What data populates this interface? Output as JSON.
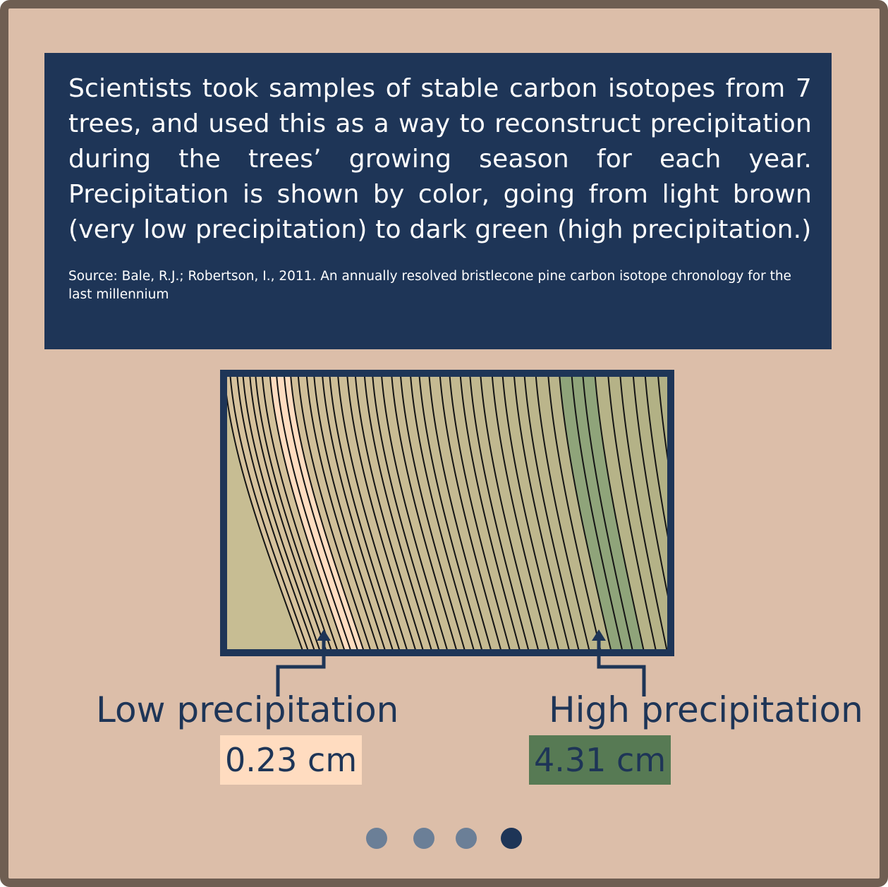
{
  "description": "Scientists took samples of stable carbon isotopes from 7 trees, and used this as a way to reconstruct precipitation during the trees’ growing season for each year. Precipitation is shown by color, going from light brown (very low precipitation) to dark green (high precipitation.)",
  "source": "Source: Bale, R.J.; Robertson, I., 2011. An annually resolved bristlecone pine carbon isotope chronology for the last millennium",
  "low": {
    "label": "Low precipitation",
    "value": "0.23 cm",
    "color": "#ffdcc0"
  },
  "high": {
    "label": "High precipitation",
    "value": "4.31 cm",
    "color": "#577a54"
  },
  "pagination": {
    "total": 4,
    "active_index": 3,
    "active_color": "#1e3557",
    "inactive_color": "#6b7f97"
  },
  "colors": {
    "frame": "#6f5e52",
    "background": "#dcbea9",
    "navy": "#1e3557"
  }
}
